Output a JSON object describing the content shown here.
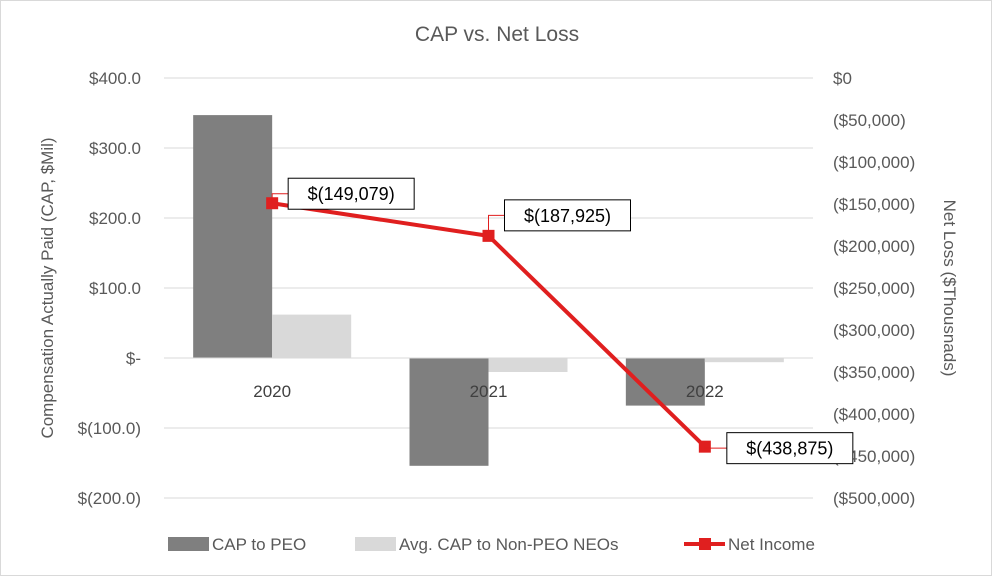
{
  "chart_data": {
    "type": "bar",
    "title": "CAP vs. Net Loss",
    "categories": [
      "2020",
      "2021",
      "2022"
    ],
    "series": [
      {
        "name": "CAP to PEO",
        "type": "bar",
        "axis": "left",
        "color": "#7f7f7f",
        "values": [
          347.0,
          -154.0,
          -68.0
        ]
      },
      {
        "name": "Avg. CAP to Non-PEO NEOs",
        "type": "bar",
        "axis": "left",
        "color": "#d9d9d9",
        "values": [
          62.0,
          -20.0,
          -6.0
        ]
      },
      {
        "name": "Net Income",
        "type": "line",
        "axis": "right",
        "color": "#e01f1f",
        "values": [
          -149079,
          -187925,
          -438875
        ],
        "data_labels": [
          "$(149,079)",
          "$(187,925)",
          "$(438,875)"
        ]
      }
    ],
    "ylabel": "Compensation Actually Paid (CAP, $Mil)",
    "y2label": "Net Loss  ($Thousnads)",
    "ylim": [
      -200,
      400
    ],
    "y2lim": [
      -500000,
      0
    ],
    "yticks": [
      {
        "value": 400,
        "label": "$400.0"
      },
      {
        "value": 300,
        "label": "$300.0"
      },
      {
        "value": 200,
        "label": "$200.0"
      },
      {
        "value": 100,
        "label": "$100.0"
      },
      {
        "value": 0,
        "label": "$-"
      },
      {
        "value": -100,
        "label": "$(100.0)"
      },
      {
        "value": -200,
        "label": "$(200.0)"
      }
    ],
    "y2ticks": [
      {
        "value": 0,
        "label": "$0"
      },
      {
        "value": -50000,
        "label": "($50,000)"
      },
      {
        "value": -100000,
        "label": "($100,000)"
      },
      {
        "value": -150000,
        "label": "($150,000)"
      },
      {
        "value": -200000,
        "label": "($200,000)"
      },
      {
        "value": -250000,
        "label": "($250,000)"
      },
      {
        "value": -300000,
        "label": "($300,000)"
      },
      {
        "value": -350000,
        "label": "($350,000)"
      },
      {
        "value": -400000,
        "label": "($400,000)"
      },
      {
        "value": -450000,
        "label": "($450,000)"
      },
      {
        "value": -500000,
        "label": "($500,000)"
      }
    ],
    "grid": true,
    "legend": "bottom"
  }
}
